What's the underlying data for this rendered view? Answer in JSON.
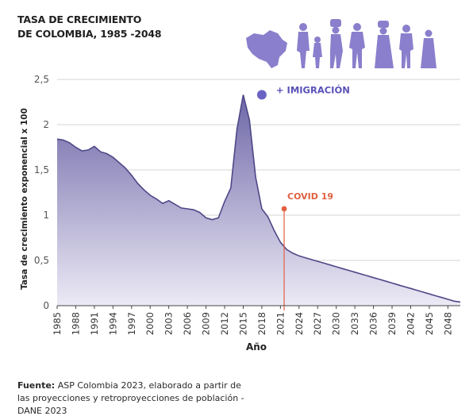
{
  "title": {
    "line1": "TASA DE CRECIMIENTO",
    "line2": "DE COLOMBIA, 1985 -2048"
  },
  "source": {
    "label": "Fuente:",
    "text": "ASP Colombia 2023, elaborado a partir de las proyecciones y retroproyecciones de población - DANE 2023"
  },
  "colors": {
    "area_top": "#7a73b0",
    "area_bottom": "#e9e7f3",
    "line": "#4e4787",
    "covid": "#e06040",
    "illustration": "#8a7fcc"
  },
  "icons": [
    "colombia-map-icon",
    "migrant-figures-icon"
  ],
  "chart_data": {
    "type": "area",
    "title": "TASA DE CRECIMIENTO DE COLOMBIA, 1985 -2048",
    "xlabel": "Año",
    "ylabel": "Tasa de crecimiento exponencial x 100",
    "ylim": [
      0,
      2.5
    ],
    "xlim": [
      1985,
      2050
    ],
    "yticks": [
      {
        "value": 0,
        "label": "0"
      },
      {
        "value": 0.5,
        "label": "0,5"
      },
      {
        "value": 1,
        "label": "1"
      },
      {
        "value": 1.5,
        "label": "1,5"
      },
      {
        "value": 2,
        "label": "2"
      },
      {
        "value": 2.5,
        "label": "2,5"
      }
    ],
    "xticks": [
      "1985",
      "1988",
      "1991",
      "1994",
      "1997",
      "2000",
      "2003",
      "2006",
      "2009",
      "2012",
      "2015",
      "2018",
      "2021",
      "2024",
      "2027",
      "2030",
      "2033",
      "2036",
      "2039",
      "2042",
      "2045",
      "2048"
    ],
    "grid": true,
    "series": [
      {
        "x": [
          1985,
          1986,
          1987,
          1988,
          1989,
          1990,
          1991,
          1992,
          1993,
          1994,
          1995,
          1996,
          1997,
          1998,
          1999,
          2000,
          2001,
          2002,
          2003,
          2004,
          2005,
          2006,
          2007,
          2008,
          2009,
          2010,
          2011,
          2012,
          2013,
          2014,
          2015,
          2016,
          2017,
          2018,
          2019,
          2020,
          2021,
          2022,
          2023,
          2024,
          2025,
          2026,
          2027,
          2028,
          2029,
          2030,
          2031,
          2032,
          2033,
          2034,
          2035,
          2036,
          2037,
          2038,
          2039,
          2040,
          2041,
          2042,
          2043,
          2044,
          2045,
          2046,
          2047,
          2048,
          2049,
          2050
        ],
        "values": [
          1.84,
          1.83,
          1.8,
          1.75,
          1.71,
          1.72,
          1.76,
          1.7,
          1.68,
          1.64,
          1.58,
          1.52,
          1.44,
          1.35,
          1.28,
          1.22,
          1.18,
          1.13,
          1.16,
          1.12,
          1.08,
          1.07,
          1.06,
          1.03,
          0.97,
          0.95,
          0.97,
          1.15,
          1.3,
          1.95,
          2.33,
          2.05,
          1.42,
          1.07,
          0.98,
          0.83,
          0.7,
          0.62,
          0.58,
          0.55,
          0.53,
          0.51,
          0.49,
          0.47,
          0.45,
          0.43,
          0.41,
          0.39,
          0.37,
          0.35,
          0.33,
          0.31,
          0.29,
          0.27,
          0.25,
          0.23,
          0.21,
          0.19,
          0.17,
          0.15,
          0.13,
          0.11,
          0.09,
          0.07,
          0.05,
          0.04
        ]
      }
    ],
    "annotations": [
      {
        "label": "+ IMIGRACIÓN",
        "x": 2018,
        "y": 2.33,
        "color": "#6b63c4"
      },
      {
        "label": "COVID 19",
        "x": 2021.6,
        "y": 1.07,
        "color": "#e06040"
      }
    ]
  }
}
